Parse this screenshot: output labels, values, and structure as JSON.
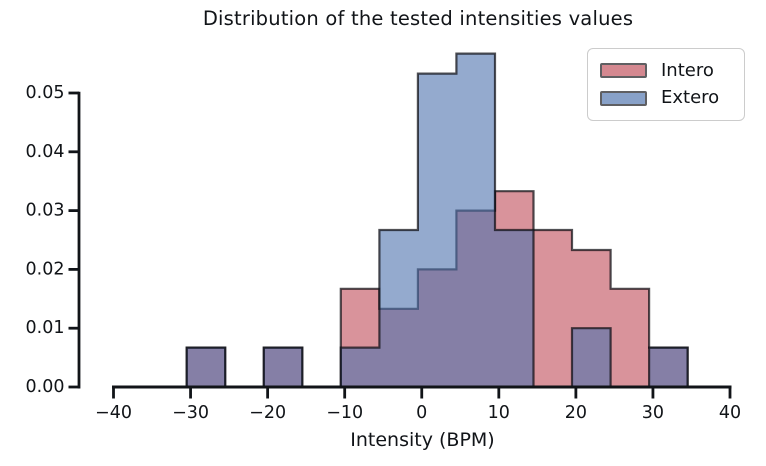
{
  "chart_data": {
    "type": "histogram",
    "title": "Distribution of the tested intensities values",
    "xlabel": "Intensity (BPM)",
    "ylabel": "",
    "xlim": [
      -40,
      40
    ],
    "ylim": [
      0,
      0.059
    ],
    "grid": false,
    "legend_position": "upper right",
    "bin_width": 5,
    "bin_edges": [
      -30.5,
      -25.5,
      -20.5,
      -15.5,
      -10.5,
      -5.5,
      -0.5,
      4.5,
      9.5,
      14.5,
      19.5,
      24.5,
      29.5,
      34.5
    ],
    "series": [
      {
        "name": "Intero",
        "fill_color": "#BF4B58",
        "values": [
          0.0067,
          0,
          0.0067,
          0,
          0.0167,
          0.0133,
          0.02,
          0.03,
          0.0333,
          0.0267,
          0.0233,
          0.0167,
          0.0067
        ]
      },
      {
        "name": "Extero",
        "fill_color": "#4C72AD",
        "values": [
          0.0067,
          0,
          0.0067,
          0,
          0.0067,
          0.0267,
          0.0533,
          0.0567,
          0.0267,
          0,
          0.01,
          0,
          0.0067
        ]
      }
    ],
    "fill_alpha": 0.6,
    "edge_color": "#0d0d12",
    "axis_color": "#111418",
    "tick_label_color": "#111418",
    "xticks": {
      "values": [
        -40,
        -30,
        -20,
        -10,
        0,
        10,
        20,
        30,
        40
      ],
      "labels": [
        "−40",
        "−30",
        "−20",
        "−10",
        "0",
        "10",
        "20",
        "30",
        "40"
      ]
    },
    "yticks": {
      "values": [
        0,
        0.01,
        0.02,
        0.03,
        0.04,
        0.05
      ],
      "labels": [
        "0.00",
        "0.01",
        "0.02",
        "0.03",
        "0.04",
        "0.05"
      ]
    },
    "legend": {
      "items": [
        {
          "label": "Intero"
        },
        {
          "label": "Extero"
        }
      ]
    }
  }
}
